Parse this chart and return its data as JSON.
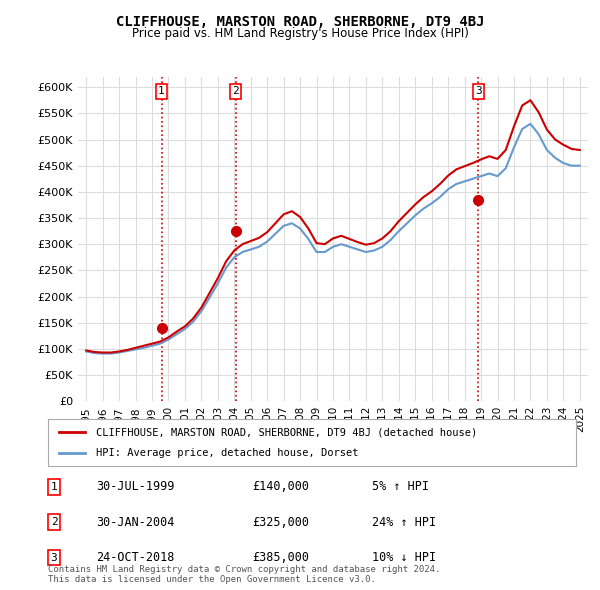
{
  "title": "CLIFFHOUSE, MARSTON ROAD, SHERBORNE, DT9 4BJ",
  "subtitle": "Price paid vs. HM Land Registry's House Price Index (HPI)",
  "ylabel": "",
  "ylim": [
    0,
    620000
  ],
  "yticks": [
    0,
    50000,
    100000,
    150000,
    200000,
    250000,
    300000,
    350000,
    400000,
    450000,
    500000,
    550000,
    600000
  ],
  "xlim": [
    1994.5,
    2025.5
  ],
  "xticks": [
    1995,
    1996,
    1997,
    1998,
    1999,
    2000,
    2001,
    2002,
    2003,
    2004,
    2005,
    2006,
    2007,
    2008,
    2009,
    2010,
    2011,
    2012,
    2013,
    2014,
    2015,
    2016,
    2017,
    2018,
    2019,
    2020,
    2021,
    2022,
    2023,
    2024,
    2025
  ],
  "transactions": [
    {
      "year": 1999.58,
      "price": 140000,
      "label": "1"
    },
    {
      "year": 2004.08,
      "price": 325000,
      "label": "2"
    },
    {
      "year": 2018.83,
      "price": 385000,
      "label": "3"
    }
  ],
  "vline_color": "#cc0000",
  "vline_style": "dotted",
  "dot_color": "#cc0000",
  "red_line_color": "#cc0000",
  "blue_line_color": "#6699cc",
  "legend_red_label": "CLIFFHOUSE, MARSTON ROAD, SHERBORNE, DT9 4BJ (detached house)",
  "legend_blue_label": "HPI: Average price, detached house, Dorset",
  "table_rows": [
    {
      "num": "1",
      "date": "30-JUL-1999",
      "price": "£140,000",
      "hpi": "5% ↑ HPI"
    },
    {
      "num": "2",
      "date": "30-JAN-2004",
      "price": "£325,000",
      "hpi": "24% ↑ HPI"
    },
    {
      "num": "3",
      "date": "24-OCT-2018",
      "price": "£385,000",
      "hpi": "10% ↓ HPI"
    }
  ],
  "footnote": "Contains HM Land Registry data © Crown copyright and database right 2024.\nThis data is licensed under the Open Government Licence v3.0.",
  "bg_color": "#ffffff",
  "plot_bg_color": "#ffffff",
  "grid_color": "#dddddd"
}
